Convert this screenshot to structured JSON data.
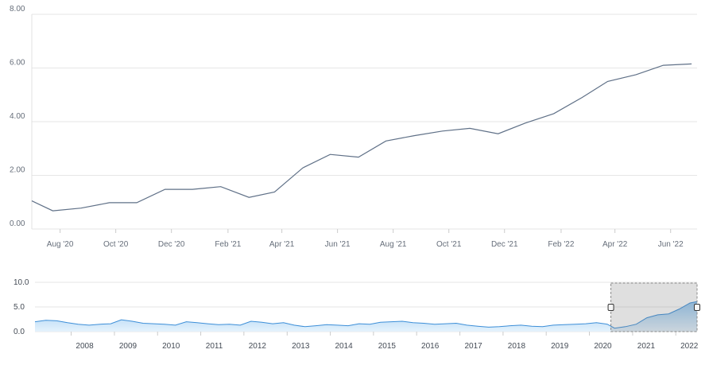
{
  "chart_data": [
    {
      "type": "line",
      "title": "",
      "xlabel": "",
      "ylabel": "",
      "ylim": [
        0,
        8
      ],
      "yticks": [
        "0.00",
        "2.00",
        "4.00",
        "6.00",
        "8.00"
      ],
      "xticks": [
        "Aug '20",
        "Oct '20",
        "Dec '20",
        "Feb '21",
        "Apr '21",
        "Jun '21",
        "Aug '21",
        "Oct '21",
        "Dec '21",
        "Feb '22",
        "Apr '22",
        "Jun '22"
      ],
      "xlim": [
        "2020-07-01",
        "2022-06-30"
      ],
      "grid": true,
      "series": [
        {
          "x": [
            "2020-07-01",
            "2020-07-24",
            "2020-08-24",
            "2020-09-24",
            "2020-10-24",
            "2020-11-24",
            "2020-12-24",
            "2021-01-24",
            "2021-02-24",
            "2021-03-24",
            "2021-04-24",
            "2021-05-24",
            "2021-06-24",
            "2021-07-24",
            "2021-08-24",
            "2021-09-24",
            "2021-10-24",
            "2021-11-24",
            "2021-12-24",
            "2022-01-24",
            "2022-02-24",
            "2022-03-24",
            "2022-04-24",
            "2022-05-24",
            "2022-06-24"
          ],
          "values": [
            1.05,
            0.68,
            0.78,
            0.98,
            0.98,
            1.48,
            1.48,
            1.58,
            1.18,
            1.38,
            2.28,
            2.78,
            2.68,
            3.28,
            3.48,
            3.65,
            3.75,
            3.55,
            3.95,
            4.3,
            4.9,
            5.5,
            5.75,
            6.1,
            6.15
          ]
        }
      ]
    },
    {
      "type": "area",
      "title": "",
      "ylim": [
        0,
        10
      ],
      "yticks": [
        "0.0",
        "5.0",
        "10.0"
      ],
      "xticks": [
        "2008",
        "2009",
        "2010",
        "2011",
        "2012",
        "2013",
        "2014",
        "2015",
        "2016",
        "2017",
        "2018",
        "2019",
        "2020",
        "2021",
        "2022"
      ],
      "xlim": [
        "2007-03-01",
        "2022-06-30"
      ],
      "selected_range": [
        "2020-07-01",
        "2022-06-30"
      ],
      "series": [
        {
          "x": [
            "2007-03-01",
            "2007-06-01",
            "2007-09-01",
            "2007-12-01",
            "2008-03-01",
            "2008-06-01",
            "2008-09-01",
            "2008-12-01",
            "2009-03-01",
            "2009-06-01",
            "2009-09-01",
            "2009-12-01",
            "2010-03-01",
            "2010-06-01",
            "2010-09-01",
            "2010-12-01",
            "2011-03-01",
            "2011-06-01",
            "2011-09-01",
            "2011-12-01",
            "2012-03-01",
            "2012-06-01",
            "2012-09-01",
            "2012-12-01",
            "2013-03-01",
            "2013-06-01",
            "2013-09-01",
            "2013-12-01",
            "2014-03-01",
            "2014-06-01",
            "2014-09-01",
            "2014-12-01",
            "2015-03-01",
            "2015-06-01",
            "2015-09-01",
            "2015-12-01",
            "2016-03-01",
            "2016-06-01",
            "2016-09-01",
            "2016-12-01",
            "2017-03-01",
            "2017-06-01",
            "2017-09-01",
            "2017-12-01",
            "2018-03-01",
            "2018-06-01",
            "2018-09-01",
            "2018-12-01",
            "2019-03-01",
            "2019-06-01",
            "2019-09-01",
            "2019-12-01",
            "2020-03-01",
            "2020-06-01",
            "2020-08-01",
            "2020-11-01",
            "2021-02-01",
            "2021-05-01",
            "2021-08-01",
            "2021-11-01",
            "2022-02-01",
            "2022-05-01",
            "2022-06-30"
          ],
          "values": [
            2.0,
            2.3,
            2.2,
            1.8,
            1.5,
            1.3,
            1.5,
            1.6,
            2.4,
            2.1,
            1.7,
            1.6,
            1.5,
            1.3,
            2.0,
            1.8,
            1.6,
            1.4,
            1.5,
            1.3,
            2.1,
            1.9,
            1.6,
            1.8,
            1.3,
            1.0,
            1.2,
            1.4,
            1.3,
            1.2,
            1.6,
            1.5,
            1.9,
            2.0,
            2.1,
            1.8,
            1.7,
            1.5,
            1.6,
            1.7,
            1.3,
            1.1,
            0.9,
            1.0,
            1.2,
            1.3,
            1.1,
            1.0,
            1.3,
            1.4,
            1.5,
            1.6,
            1.8,
            1.5,
            0.7,
            1.0,
            1.5,
            2.8,
            3.4,
            3.6,
            4.6,
            5.8,
            6.1
          ]
        }
      ]
    }
  ]
}
